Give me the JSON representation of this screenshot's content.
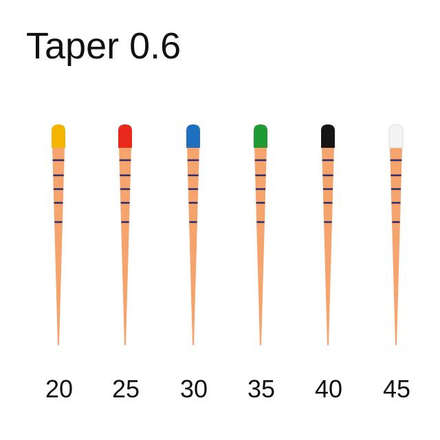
{
  "title": "Taper 0.6",
  "points": [
    {
      "label": "20",
      "cap_color": "#f5b400"
    },
    {
      "label": "25",
      "cap_color": "#e8291c"
    },
    {
      "label": "30",
      "cap_color": "#1e6fc0"
    },
    {
      "label": "35",
      "cap_color": "#1f9a35"
    },
    {
      "label": "40",
      "cap_color": "#151515"
    },
    {
      "label": "45",
      "cap_color": "#f4f4f4"
    }
  ]
}
